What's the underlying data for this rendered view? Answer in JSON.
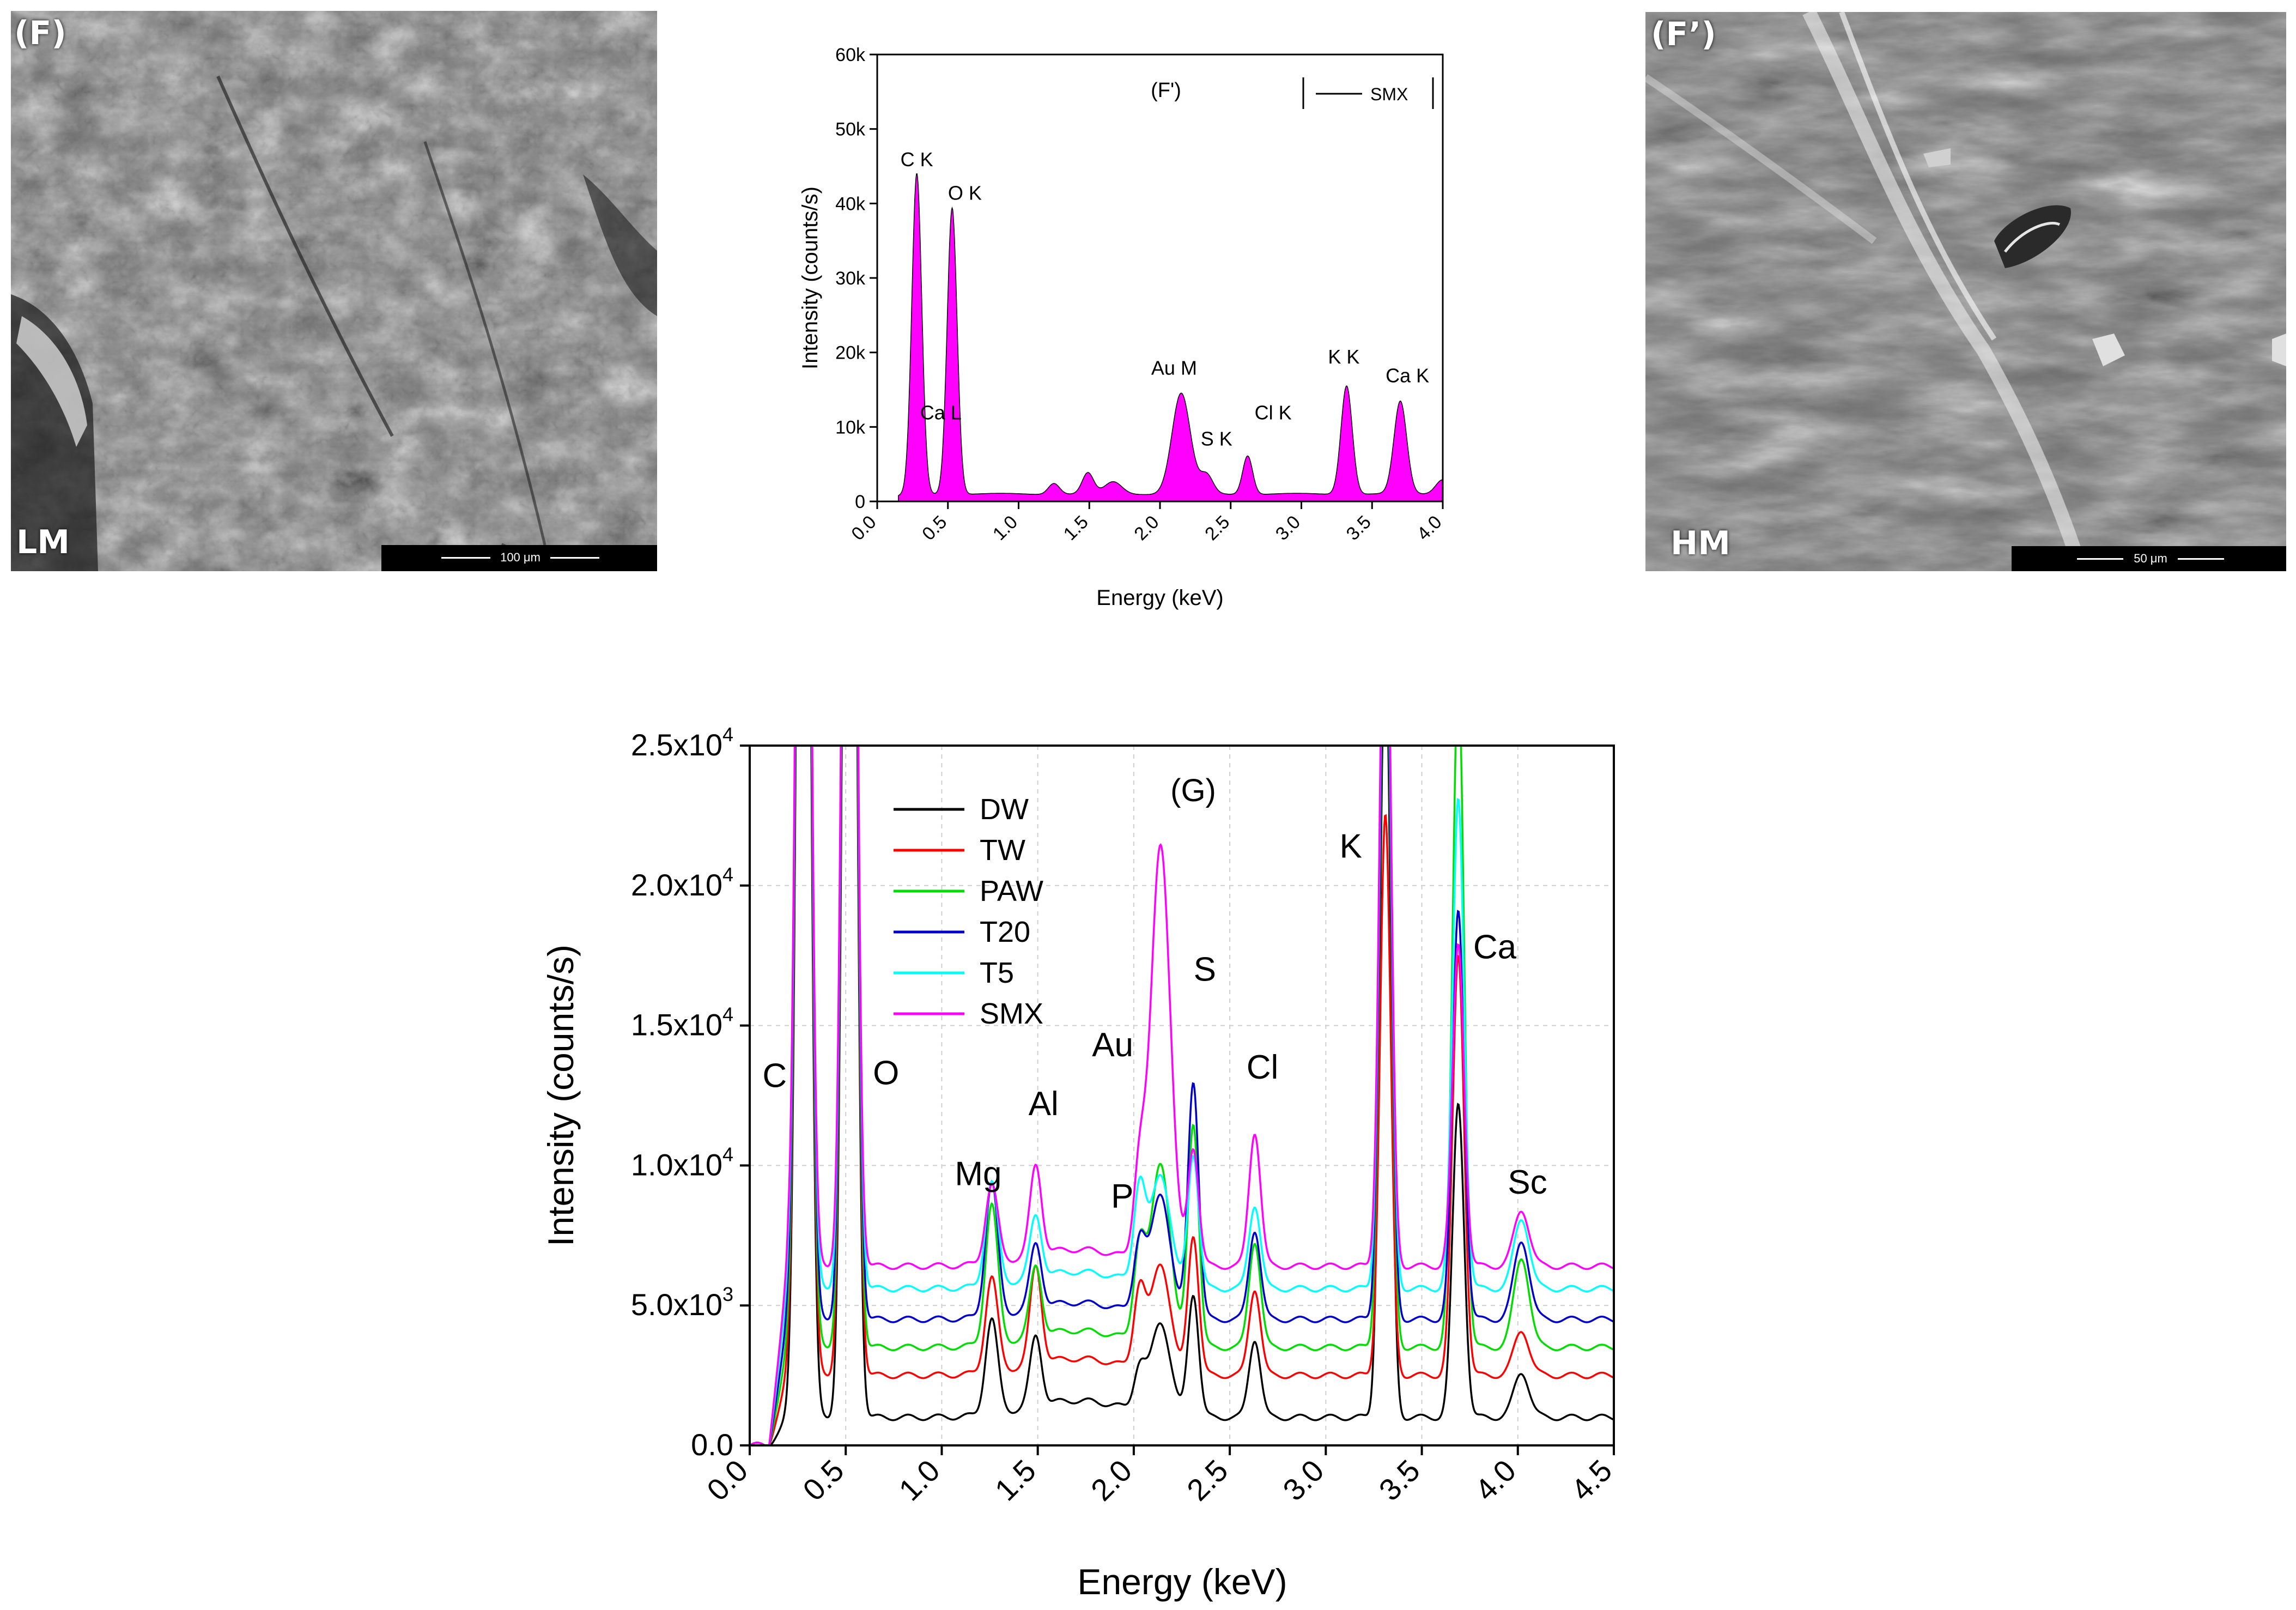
{
  "sem_left": {
    "panel_label": "(F)",
    "mag_label": "LM",
    "scale_label": "100 μm"
  },
  "sem_right": {
    "panel_label": "(F’)",
    "mag_label": "HM",
    "scale_label": "50 μm"
  },
  "colors": {
    "smx": "#ff00ff",
    "dw": "#000000",
    "tw": "#ff0000",
    "paw": "#00dd00",
    "t20": "#0000cc",
    "t5": "#00ffff"
  },
  "chart_data": [
    {
      "id": "F-prime",
      "type": "area",
      "panel_label": "(F')",
      "legend": [
        "SMX"
      ],
      "xlabel": "Energy (keV)",
      "ylabel": "Intensity (counts/s)",
      "xlim": [
        0.0,
        4.0
      ],
      "ylim": [
        0,
        60000
      ],
      "x_ticks": [
        "0.0",
        "0.5",
        "1.0",
        "1.5",
        "2.0",
        "2.5",
        "3.0",
        "3.5",
        "4.0"
      ],
      "y_ticks": [
        "0",
        "10k",
        "20k",
        "30k",
        "40k",
        "50k",
        "60k"
      ],
      "series": [
        {
          "name": "SMX",
          "peaks": [
            {
              "x": 0.28,
              "y": 43000,
              "w": 0.035
            },
            {
              "x": 0.53,
              "y": 38500,
              "w": 0.035
            },
            {
              "x": 1.25,
              "y": 1500,
              "w": 0.04
            },
            {
              "x": 1.49,
              "y": 2800,
              "w": 0.04
            },
            {
              "x": 1.67,
              "y": 1600,
              "w": 0.06
            },
            {
              "x": 2.15,
              "y": 13500,
              "w": 0.065
            },
            {
              "x": 2.33,
              "y": 2500,
              "w": 0.045
            },
            {
              "x": 2.62,
              "y": 5200,
              "w": 0.035
            },
            {
              "x": 3.32,
              "y": 14600,
              "w": 0.04
            },
            {
              "x": 3.7,
              "y": 12400,
              "w": 0.045
            },
            {
              "x": 4.0,
              "y": 2000,
              "w": 0.05
            }
          ],
          "baseline": 1000
        }
      ],
      "annotations": [
        {
          "text": "C K",
          "x": 0.28,
          "y": 45000
        },
        {
          "text": "O K",
          "x": 0.62,
          "y": 40500
        },
        {
          "text": "Ca L",
          "x": 0.45,
          "y": 11000
        },
        {
          "text": "Au M",
          "x": 2.1,
          "y": 17000
        },
        {
          "text": "S K",
          "x": 2.4,
          "y": 7500
        },
        {
          "text": "Cl K",
          "x": 2.8,
          "y": 11000
        },
        {
          "text": "K K",
          "x": 3.3,
          "y": 18500
        },
        {
          "text": "Ca K",
          "x": 3.75,
          "y": 16000
        }
      ]
    },
    {
      "id": "G",
      "type": "line",
      "panel_label": "(G)",
      "xlabel": "Energy (keV)",
      "ylabel": "Intensity (counts/s)",
      "xlim": [
        0.0,
        4.5
      ],
      "ylim": [
        0,
        25000
      ],
      "x_ticks": [
        "0.0",
        "0.5",
        "1.0",
        "1.5",
        "2.0",
        "2.5",
        "3.0",
        "3.5",
        "4.0",
        "4.5"
      ],
      "y_ticks": [
        {
          "m": "0.0",
          "e": ""
        },
        {
          "m": "5.0x10",
          "e": "3"
        },
        {
          "m": "1.0x10",
          "e": "4"
        },
        {
          "m": "1.5x10",
          "e": "4"
        },
        {
          "m": "2.0x10",
          "e": "4"
        },
        {
          "m": "2.5x10",
          "e": "4"
        }
      ],
      "series": [
        {
          "name": "DW",
          "offset": 0,
          "peaks": [
            3400,
            2500,
            1500,
            3300,
            4400,
            2800,
            28000,
            11200,
            1600
          ]
        },
        {
          "name": "TW",
          "offset": 1500,
          "peaks": [
            3400,
            3500,
            2800,
            3900,
            5000,
            3100,
            20000,
            15000,
            1600
          ]
        },
        {
          "name": "PAW",
          "offset": 2500,
          "peaks": [
            5000,
            2500,
            3300,
            6500,
            8000,
            3800,
            28000,
            24000,
            3200
          ]
        },
        {
          "name": "T20",
          "offset": 3500,
          "peaks": [
            4800,
            2300,
            2500,
            4400,
            8500,
            3200,
            28000,
            14600,
            2800
          ]
        },
        {
          "name": "T5",
          "offset": 4600,
          "peaks": [
            3700,
            2200,
            3400,
            4000,
            4800,
            3000,
            28000,
            17500,
            2500
          ]
        },
        {
          "name": "SMX",
          "offset": 5400,
          "peaks": [
            2800,
            3200,
            3200,
            15000,
            4200,
            4800,
            28000,
            11500,
            2000
          ]
        }
      ],
      "peak_positions": [
        1.26,
        1.49,
        2.03,
        2.14,
        2.31,
        2.63,
        3.31,
        3.69,
        4.02
      ],
      "annotations": [
        {
          "text": "C",
          "x": 0.13,
          "y": 12800
        },
        {
          "text": "O",
          "x": 0.71,
          "y": 12900
        },
        {
          "text": "Mg",
          "x": 1.19,
          "y": 9300
        },
        {
          "text": "Al",
          "x": 1.53,
          "y": 11800
        },
        {
          "text": "P",
          "x": 1.94,
          "y": 8500
        },
        {
          "text": "Au",
          "x": 1.89,
          "y": 13900
        },
        {
          "text": "S",
          "x": 2.37,
          "y": 16600
        },
        {
          "text": "Cl",
          "x": 2.67,
          "y": 13100
        },
        {
          "text": "K",
          "x": 3.13,
          "y": 21000
        },
        {
          "text": "Ca",
          "x": 3.88,
          "y": 17400
        },
        {
          "text": "Sc",
          "x": 4.05,
          "y": 9000
        }
      ]
    }
  ]
}
